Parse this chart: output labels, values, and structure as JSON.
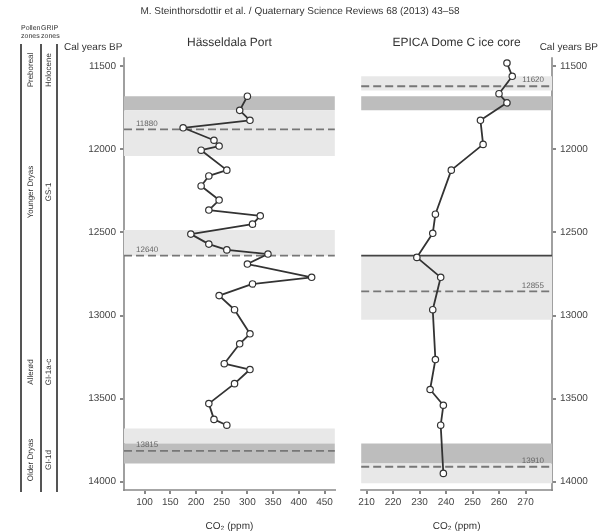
{
  "chart_data": [
    {
      "type": "line",
      "orientation": "horizontal",
      "title": "Hässeldala Port",
      "xlabel": "CO₂ (ppm)",
      "ylabel": "Cal years BP",
      "series": [
        {
          "color": "#333333",
          "x": [
            11680,
            11765,
            11825,
            11870,
            11945,
            11980,
            12005,
            12125,
            12160,
            12220,
            12305,
            12365,
            12400,
            12450,
            12510,
            12570,
            12605,
            12630,
            12690,
            12770,
            12810,
            12880,
            12965,
            13110,
            13170,
            13290,
            13325,
            13410,
            13530,
            13625,
            13660
          ],
          "values": [
            300,
            285,
            305,
            175,
            235,
            245,
            210,
            260,
            225,
            210,
            245,
            225,
            325,
            310,
            190,
            225,
            260,
            340,
            300,
            425,
            310,
            245,
            275,
            305,
            285,
            255,
            305,
            275,
            225,
            235,
            260
          ]
        }
      ],
      "xlim": [
        60,
        470
      ],
      "xticks": [
        100,
        150,
        200,
        250,
        300,
        350,
        400,
        450
      ],
      "ylim": [
        14050,
        11450
      ],
      "yticks": [
        11500,
        12000,
        12500,
        13000,
        13500,
        14000
      ],
      "marker": "circle",
      "line_style": "solid",
      "legend": false,
      "grid": false,
      "bands": [
        {
          "axis": "y",
          "from": 11680,
          "to": 11765,
          "color": "#bdbdbd"
        },
        {
          "axis": "y",
          "from": 11765,
          "to": 12040,
          "color": "#e8e8e8"
        },
        {
          "axis": "y",
          "from": 12485,
          "to": 12640,
          "color": "#e8e8e8"
        },
        {
          "axis": "y",
          "from": 13680,
          "to": 13770,
          "color": "#e8e8e8"
        },
        {
          "axis": "y",
          "from": 13770,
          "to": 13890,
          "color": "#bdbdbd"
        }
      ],
      "ref_lines": [
        {
          "axis": "y",
          "value": 11880,
          "label": "11880",
          "color": "#777777",
          "line_style": "dashed"
        },
        {
          "axis": "y",
          "value": 12640,
          "label": "12640",
          "color": "#777777",
          "line_style": "dashed"
        },
        {
          "axis": "y",
          "value": 13815,
          "label": "13815",
          "color": "#777777",
          "line_style": "dashed"
        }
      ],
      "annotations": [
        "M. Steinthorsdottir et al. / Quaternary Science Reviews 68 (2013) 43–58",
        "Pollen zones",
        "GRIP zones",
        "Preboreal",
        "Holocene",
        "Younger Dryas",
        "GS-1",
        "Allerød",
        "GI-1a-c",
        "Older Dryas",
        "GI-1d"
      ]
    },
    {
      "type": "line",
      "orientation": "horizontal",
      "title": "EPICA Dome C ice core",
      "xlabel": "CO₂ (ppm)",
      "ylabel": "Cal years BP",
      "series": [
        {
          "color": "#333333",
          "x": [
            11480,
            11560,
            11665,
            11720,
            11825,
            11970,
            12125,
            12390,
            12505,
            12650,
            12770,
            12965,
            13265,
            13445,
            13540,
            13660,
            13950
          ],
          "values": [
            263,
            265,
            260,
            263,
            253,
            254,
            242,
            236,
            235,
            229,
            238,
            235,
            236,
            234,
            239,
            238,
            239
          ]
        }
      ],
      "xlim": [
        208,
        280
      ],
      "xticks": [
        210,
        220,
        230,
        240,
        250,
        260,
        270
      ],
      "ylim": [
        14050,
        11450
      ],
      "yticks": [
        11500,
        12000,
        12500,
        13000,
        13500,
        14000
      ],
      "marker": "circle",
      "line_style": "solid",
      "legend": false,
      "grid": false,
      "bands": [
        {
          "axis": "y",
          "from": 11560,
          "to": 11645,
          "color": "#e8e8e8"
        },
        {
          "axis": "y",
          "from": 11680,
          "to": 11765,
          "color": "#bdbdbd"
        },
        {
          "axis": "y",
          "from": 12640,
          "to": 13025,
          "color": "#e8e8e8"
        },
        {
          "axis": "y",
          "from": 13770,
          "to": 13890,
          "color": "#bdbdbd"
        },
        {
          "axis": "y",
          "from": 13890,
          "to": 14010,
          "color": "#e8e8e8"
        }
      ],
      "ref_lines": [
        {
          "axis": "y",
          "value": 11620,
          "label": "11620",
          "color": "#777777",
          "line_style": "dashed"
        },
        {
          "axis": "y",
          "value": 12640,
          "color": "#444444",
          "line_style": "solid"
        },
        {
          "axis": "y",
          "value": 12855,
          "label": "12855",
          "color": "#777777",
          "line_style": "dashed"
        },
        {
          "axis": "y",
          "value": 13910,
          "label": "13910",
          "color": "#777777",
          "line_style": "dashed"
        }
      ]
    }
  ]
}
